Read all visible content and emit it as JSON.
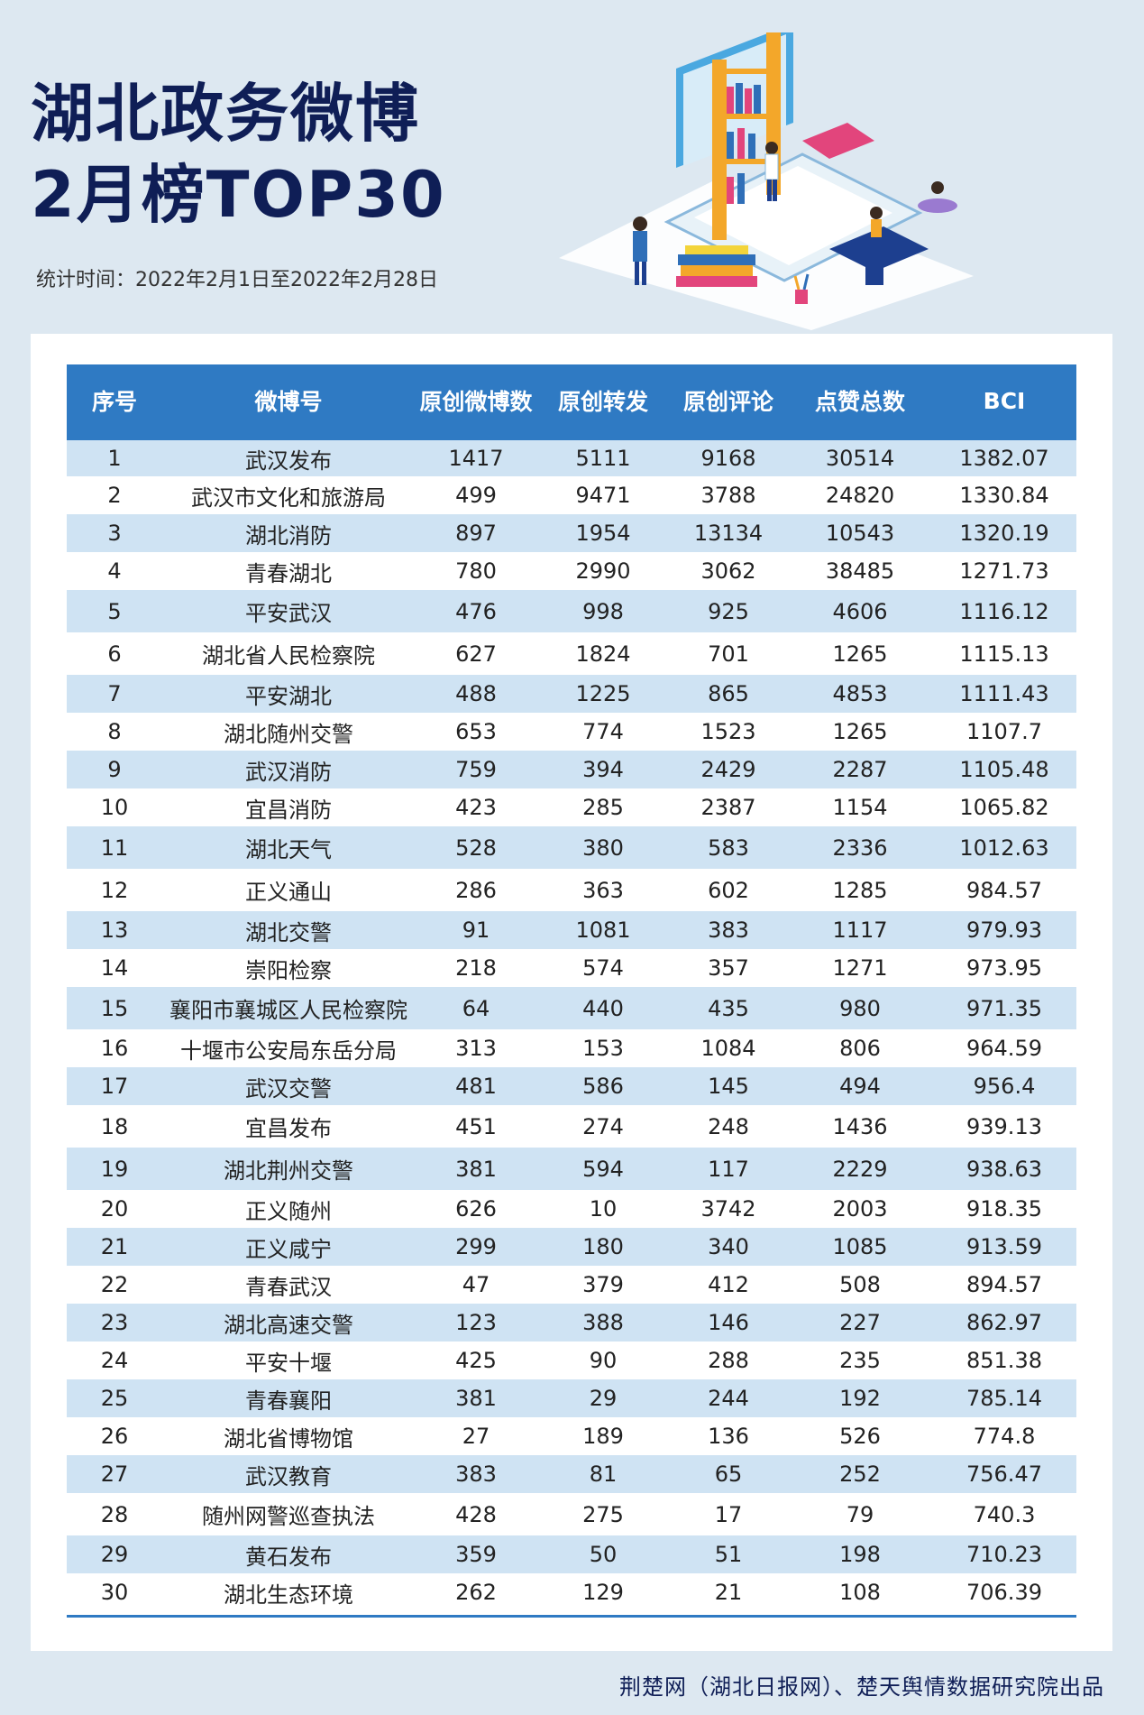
{
  "header": {
    "title_line1": "湖北政务微博",
    "title_line2": "2月榜TOP30",
    "period": "统计时间：2022年2月1日至2022年2月28日"
  },
  "table": {
    "columns": [
      "序号",
      "微博号",
      "原创微博数",
      "原创转发",
      "原创评论",
      "点赞总数",
      "BCI"
    ],
    "rows": [
      [
        "1",
        "武汉发布",
        "1417",
        "5111",
        "9168",
        "30514",
        "1382.07"
      ],
      [
        "2",
        "武汉市文化和旅游局",
        "499",
        "9471",
        "3788",
        "24820",
        "1330.84"
      ],
      [
        "3",
        "湖北消防",
        "897",
        "1954",
        "13134",
        "10543",
        "1320.19"
      ],
      [
        "4",
        "青春湖北",
        "780",
        "2990",
        "3062",
        "38485",
        "1271.73"
      ],
      [
        "5",
        "平安武汉",
        "476",
        "998",
        "925",
        "4606",
        "1116.12"
      ],
      [
        "6",
        "湖北省人民检察院",
        "627",
        "1824",
        "701",
        "1265",
        "1115.13"
      ],
      [
        "7",
        "平安湖北",
        "488",
        "1225",
        "865",
        "4853",
        "1111.43"
      ],
      [
        "8",
        "湖北随州交警",
        "653",
        "774",
        "1523",
        "1265",
        "1107.7"
      ],
      [
        "9",
        "武汉消防",
        "759",
        "394",
        "2429",
        "2287",
        "1105.48"
      ],
      [
        "10",
        "宜昌消防",
        "423",
        "285",
        "2387",
        "1154",
        "1065.82"
      ],
      [
        "11",
        "湖北天气",
        "528",
        "380",
        "583",
        "2336",
        "1012.63"
      ],
      [
        "12",
        "正义通山",
        "286",
        "363",
        "602",
        "1285",
        "984.57"
      ],
      [
        "13",
        "湖北交警",
        "91",
        "1081",
        "383",
        "1117",
        "979.93"
      ],
      [
        "14",
        "崇阳检察",
        "218",
        "574",
        "357",
        "1271",
        "973.95"
      ],
      [
        "15",
        "襄阳市襄城区人民检察院",
        "64",
        "440",
        "435",
        "980",
        "971.35"
      ],
      [
        "16",
        "十堰市公安局东岳分局",
        "313",
        "153",
        "1084",
        "806",
        "964.59"
      ],
      [
        "17",
        "武汉交警",
        "481",
        "586",
        "145",
        "494",
        "956.4"
      ],
      [
        "18",
        "宜昌发布",
        "451",
        "274",
        "248",
        "1436",
        "939.13"
      ],
      [
        "19",
        "湖北荆州交警",
        "381",
        "594",
        "117",
        "2229",
        "938.63"
      ],
      [
        "20",
        "正义随州",
        "626",
        "10",
        "3742",
        "2003",
        "918.35"
      ],
      [
        "21",
        "正义咸宁",
        "299",
        "180",
        "340",
        "1085",
        "913.59"
      ],
      [
        "22",
        "青春武汉",
        "47",
        "379",
        "412",
        "508",
        "894.57"
      ],
      [
        "23",
        "湖北高速交警",
        "123",
        "388",
        "146",
        "227",
        "862.97"
      ],
      [
        "24",
        "平安十堰",
        "425",
        "90",
        "288",
        "235",
        "851.38"
      ],
      [
        "25",
        "青春襄阳",
        "381",
        "29",
        "244",
        "192",
        "785.14"
      ],
      [
        "26",
        "湖北省博物馆",
        "27",
        "189",
        "136",
        "526",
        "774.8"
      ],
      [
        "27",
        "武汉教育",
        "383",
        "81",
        "65",
        "252",
        "756.47"
      ],
      [
        "28",
        "随州网警巡查执法",
        "428",
        "275",
        "17",
        "79",
        "740.3"
      ],
      [
        "29",
        "黄石发布",
        "359",
        "50",
        "51",
        "198",
        "710.23"
      ],
      [
        "30",
        "湖北生态环境",
        "262",
        "129",
        "21",
        "108",
        "706.39"
      ]
    ]
  },
  "footer": {
    "credit": "荆楚网（湖北日报网）、楚天舆情数据研究院出品"
  },
  "colors": {
    "header_bg": "#2f7ac3",
    "stripe": "#cfe3f3",
    "title": "#0f1e56",
    "page_bg": "#dde8f1"
  },
  "illustration": {
    "icon": "library-laptop-illustration"
  }
}
